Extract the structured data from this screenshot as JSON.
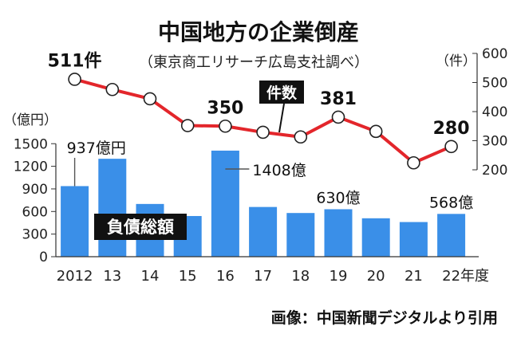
{
  "chart_data": {
    "type": "bar",
    "title": "中国地方の企業倒産",
    "subtitle": "（東京商工リサーチ広島支社調べ）",
    "categories": [
      "2012",
      "13",
      "14",
      "15",
      "16",
      "17",
      "18",
      "19",
      "20",
      "21",
      "22年度"
    ],
    "series": [
      {
        "name": "負債総額",
        "type": "bar",
        "unit": "（億円）",
        "axis": "left",
        "color": "#3a8fe8",
        "values": [
          937,
          1300,
          700,
          540,
          1408,
          660,
          580,
          630,
          510,
          460,
          568
        ]
      },
      {
        "name": "件数",
        "type": "line",
        "unit": "（件）",
        "axis": "right",
        "color": "#e3262b",
        "values": [
          511,
          476,
          444,
          352,
          350,
          329,
          313,
          381,
          332,
          224,
          280
        ]
      }
    ],
    "left_axis": {
      "min": 0,
      "max": 1500,
      "ticks": [
        "0",
        "300",
        "600",
        "900",
        "1200",
        "1500"
      ]
    },
    "right_axis": {
      "min": 200,
      "max": 600,
      "ticks": [
        "200",
        "300",
        "400",
        "500",
        "600"
      ]
    },
    "bar_labels": [
      {
        "index": 0,
        "text": "937億円"
      },
      {
        "index": 4,
        "text": "1408億"
      },
      {
        "index": 7,
        "text": "630億"
      },
      {
        "index": 10,
        "text": "568億"
      }
    ],
    "line_labels": [
      {
        "index": 0,
        "text": "511件"
      },
      {
        "index": 4,
        "text": "350"
      },
      {
        "index": 7,
        "text": "381"
      },
      {
        "index": 10,
        "text": "280"
      }
    ],
    "legend_labels": {
      "line": "件数",
      "bar": "負債総額"
    }
  },
  "credit": "画像：中国新聞デジタルより引用"
}
